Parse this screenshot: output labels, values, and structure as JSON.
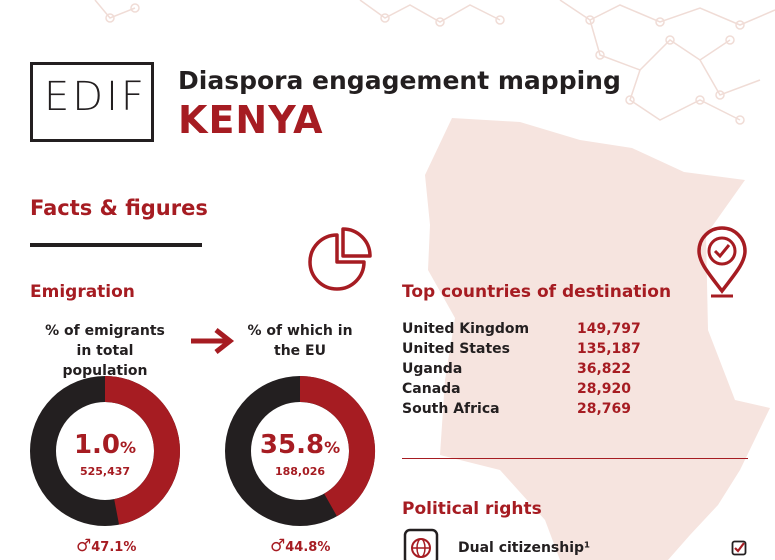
{
  "header": {
    "logo_text": "EDIF",
    "title": "Diaspora engagement mapping",
    "country": "KENYA"
  },
  "facts": {
    "section_title": "Facts & figures",
    "emigration_title": "Emigration",
    "total_label": "% of emigrants in total population",
    "eu_label": "% of which in the EU",
    "total_value": "1.0",
    "total_pct_sign": "%",
    "total_count": "525,437",
    "total_fraction": 0.01,
    "eu_value": "35.8",
    "eu_pct_sign": "%",
    "eu_count": "188,026",
    "eu_fraction": 0.358,
    "male_symbol": "♂",
    "male_total": "47.1%",
    "male_eu": "44.8%"
  },
  "destinations": {
    "title": "Top countries of destination",
    "rows": [
      {
        "country": "United Kingdom",
        "value": "149,797"
      },
      {
        "country": "United States",
        "value": "135,187"
      },
      {
        "country": "Uganda",
        "value": "36,822"
      },
      {
        "country": "Canada",
        "value": "28,920"
      },
      {
        "country": "South Africa",
        "value": "28,769"
      }
    ]
  },
  "political": {
    "title": "Political rights",
    "dual_citizenship": "Dual citizenship¹"
  },
  "colors": {
    "accent": "#a61c22",
    "dark": "#231f20",
    "map": "#f6e4df"
  },
  "icons": [
    "pie-chart-icon",
    "arrow-right-icon",
    "location-pin-icon",
    "passport-globe-icon",
    "checkbox-checked-icon",
    "male-icon"
  ]
}
